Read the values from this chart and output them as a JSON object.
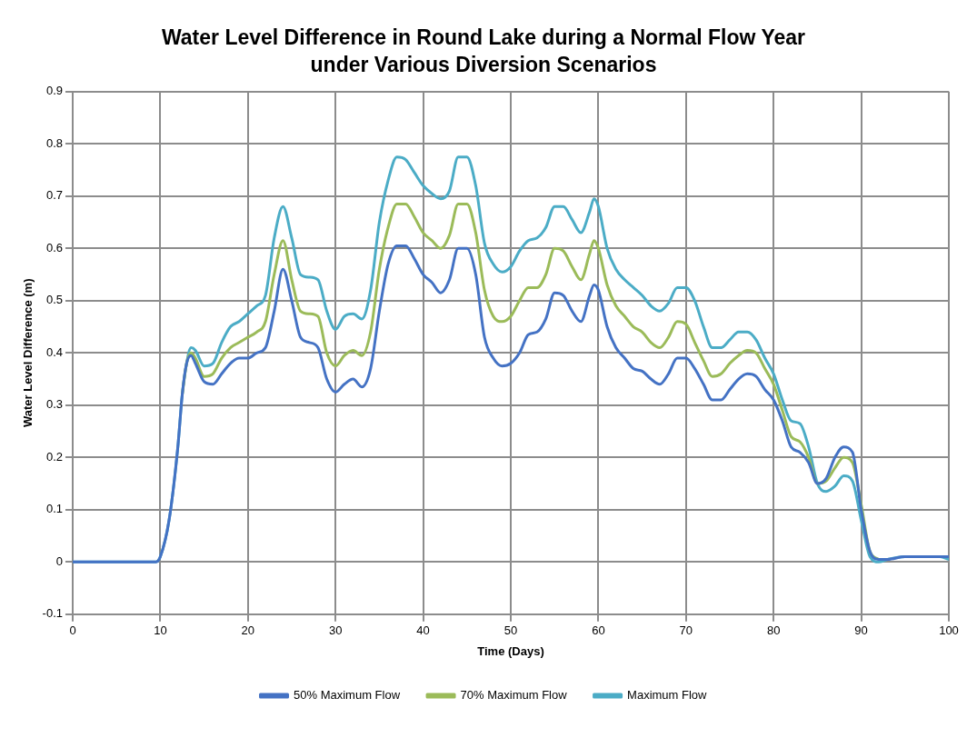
{
  "chart_data": {
    "type": "line",
    "title": "Water Level Difference in Round Lake during a Normal Flow Year under Various Diversion Scenarios",
    "xlabel": "Time (Days)",
    "ylabel": "Water Level Difference (m)",
    "x": [
      0,
      5,
      9,
      9.5,
      10,
      11,
      12,
      12.5,
      13,
      13.5,
      14,
      15,
      16,
      17,
      18,
      19,
      20,
      21,
      22,
      23,
      24,
      25,
      26,
      27,
      28,
      29,
      30,
      31,
      32,
      33,
      34,
      35,
      36,
      37,
      38,
      39,
      40,
      41,
      42,
      43,
      44,
      45,
      46,
      47,
      48,
      49,
      50,
      51,
      52,
      53,
      54,
      55,
      56,
      57,
      58,
      59,
      59.5,
      60,
      61,
      62,
      63,
      64,
      65,
      66,
      67,
      68,
      69,
      70,
      71,
      72,
      73,
      74,
      75,
      76,
      77,
      78,
      79,
      80,
      81,
      82,
      83,
      84,
      85,
      86,
      87,
      88,
      89,
      90,
      91,
      92,
      93,
      95,
      97,
      99,
      100
    ],
    "series": [
      {
        "name": "50% Maximum Flow",
        "color": "#4472c4",
        "values": [
          0,
          0,
          0,
          0,
          0.01,
          0.08,
          0.22,
          0.32,
          0.38,
          0.395,
          0.38,
          0.345,
          0.34,
          0.36,
          0.38,
          0.39,
          0.39,
          0.4,
          0.41,
          0.48,
          0.56,
          0.5,
          0.43,
          0.42,
          0.41,
          0.35,
          0.325,
          0.34,
          0.35,
          0.335,
          0.37,
          0.48,
          0.57,
          0.605,
          0.605,
          0.58,
          0.55,
          0.535,
          0.515,
          0.54,
          0.6,
          0.6,
          0.55,
          0.43,
          0.39,
          0.375,
          0.38,
          0.4,
          0.435,
          0.44,
          0.465,
          0.515,
          0.51,
          0.48,
          0.46,
          0.51,
          0.53,
          0.52,
          0.45,
          0.41,
          0.39,
          0.37,
          0.365,
          0.35,
          0.34,
          0.36,
          0.39,
          0.39,
          0.37,
          0.34,
          0.31,
          0.31,
          0.33,
          0.35,
          0.36,
          0.355,
          0.33,
          0.31,
          0.27,
          0.22,
          0.21,
          0.19,
          0.15,
          0.16,
          0.2,
          0.22,
          0.21,
          0.1,
          0.02,
          0.005,
          0.005,
          0.01,
          0.01,
          0.01,
          0.01
        ]
      },
      {
        "name": "70% Maximum Flow",
        "color": "#9bbb59",
        "values": [
          null,
          null,
          null,
          null,
          null,
          null,
          null,
          0.32,
          0.38,
          0.4,
          0.39,
          0.355,
          0.36,
          0.39,
          0.41,
          0.42,
          0.43,
          0.44,
          0.46,
          0.55,
          0.615,
          0.54,
          0.48,
          0.475,
          0.47,
          0.4,
          0.375,
          0.395,
          0.405,
          0.395,
          0.44,
          0.56,
          0.64,
          0.685,
          0.685,
          0.66,
          0.63,
          0.615,
          0.6,
          0.625,
          0.685,
          0.685,
          0.63,
          0.52,
          0.47,
          0.46,
          0.47,
          0.5,
          0.525,
          0.525,
          0.55,
          0.6,
          0.595,
          0.565,
          0.54,
          0.59,
          0.615,
          0.6,
          0.53,
          0.49,
          0.47,
          0.45,
          0.44,
          0.42,
          0.41,
          0.43,
          0.46,
          0.455,
          0.42,
          0.385,
          0.355,
          0.36,
          0.38,
          0.395,
          0.405,
          0.4,
          0.37,
          0.34,
          0.29,
          0.24,
          0.23,
          0.2,
          0.15,
          0.155,
          0.18,
          0.2,
          0.19,
          0.11,
          0.02,
          0.005,
          null,
          null,
          null,
          null,
          null
        ]
      },
      {
        "name": "Maximum Flow",
        "color": "#4bacc6",
        "values": [
          0,
          0,
          0,
          0,
          0.01,
          0.08,
          0.22,
          0.32,
          0.38,
          0.41,
          0.405,
          0.375,
          0.38,
          0.42,
          0.45,
          0.46,
          0.475,
          0.49,
          0.51,
          0.62,
          0.68,
          0.62,
          0.55,
          0.545,
          0.54,
          0.48,
          0.445,
          0.47,
          0.475,
          0.465,
          0.52,
          0.65,
          0.73,
          0.775,
          0.77,
          0.745,
          0.72,
          0.705,
          0.695,
          0.71,
          0.775,
          0.775,
          0.72,
          0.61,
          0.57,
          0.555,
          0.565,
          0.595,
          0.615,
          0.62,
          0.64,
          0.68,
          0.68,
          0.655,
          0.63,
          0.67,
          0.695,
          0.68,
          0.6,
          0.56,
          0.54,
          0.525,
          0.51,
          0.49,
          0.48,
          0.495,
          0.525,
          0.525,
          0.5,
          0.45,
          0.41,
          0.41,
          0.425,
          0.44,
          0.44,
          0.425,
          0.39,
          0.36,
          0.31,
          0.27,
          0.265,
          0.22,
          0.15,
          0.135,
          0.145,
          0.165,
          0.155,
          0.08,
          0.01,
          0,
          0.005,
          0.01,
          0.01,
          0.01,
          0.005
        ]
      }
    ],
    "xlim": [
      0,
      100
    ],
    "xticks": [
      0,
      10,
      20,
      30,
      40,
      50,
      60,
      70,
      80,
      90,
      100
    ],
    "ylim": [
      -0.1,
      0.9
    ],
    "yticks": [
      -0.1,
      0,
      0.1,
      0.2,
      0.3,
      0.4,
      0.5,
      0.6,
      0.7,
      0.8,
      0.9
    ],
    "grid": true,
    "legend": "bottom",
    "marker": "none",
    "line_style": "solid"
  }
}
